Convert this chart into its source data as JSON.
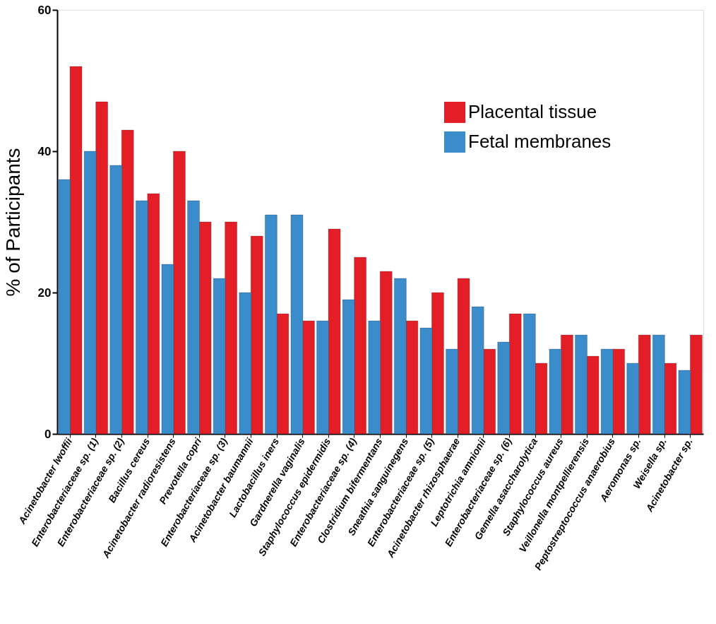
{
  "chart_data": {
    "type": "bar",
    "ylabel": "% of Participants",
    "categories": [
      "Acinetobacter lwoffii",
      "Enterobacteriaceae sp. (1)",
      "Enterobacteriaceae sp. (2)",
      "Bacillus cereus",
      "Acinetobacter radioresistens",
      "Prevotella copri",
      "Enterobacteriaceae sp. (3)",
      "Acinetobacter baumannii",
      "Lactobacillus iners",
      "Gardnerella vaginalis",
      "Staphylococcus epidermidis",
      "Enterobacteriaceae sp. (4)",
      "Clostridium bifermentans",
      "Sneathia sanguinegens",
      "Enterobacteriaceae sp. (5)",
      "Acinetobacter rhizosphaerae",
      "Leptotrichia amnionii",
      "Enterobacteriaceae sp. (6)",
      "Gemella asaccharolytica",
      "Staphylococcus aureus",
      "Veillonella montpellierensis",
      "Peptostreptococcus anaerobius",
      "Aeromonas sp.",
      "Weisella sp.",
      "Acinetobacter sp."
    ],
    "series": [
      {
        "name": "Placental tissue",
        "color": "#e41e26",
        "values": [
          52,
          47,
          43,
          34,
          40,
          30,
          30,
          28,
          17,
          16,
          29,
          25,
          23,
          16,
          20,
          22,
          12,
          17,
          10,
          14,
          11,
          12,
          14,
          10,
          14
        ]
      },
      {
        "name": "Fetal membranes",
        "color": "#3a8ccb",
        "values": [
          36,
          40,
          38,
          33,
          24,
          33,
          22,
          20,
          31,
          31,
          16,
          19,
          16,
          22,
          15,
          12,
          18,
          13,
          17,
          12,
          14,
          12,
          10,
          14,
          9
        ]
      }
    ],
    "ylim": [
      0,
      60
    ],
    "yticks": [
      0,
      20,
      40,
      60
    ],
    "grid": false,
    "legend": "top right"
  }
}
